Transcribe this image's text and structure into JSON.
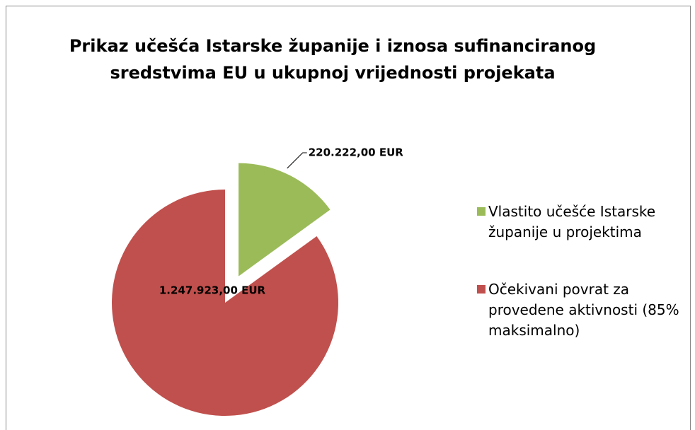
{
  "chart_data": {
    "type": "pie",
    "title": "Prikaz učešća Istarske županije i iznosa sufinanciranog sredstvima EU u ukupnoj vrijednosti projekata",
    "categories": [
      "Vlastito učešće Istarske županije u projektima",
      "Očekivani povrat za provedene aktivnosti (85% maksimalno)"
    ],
    "values": [
      220222,
      1247923
    ],
    "value_labels": [
      "220.222,00 EUR",
      "1.247.923,00 EUR"
    ],
    "colors": [
      "#9bbb59",
      "#c0504d"
    ],
    "legend": "right"
  }
}
